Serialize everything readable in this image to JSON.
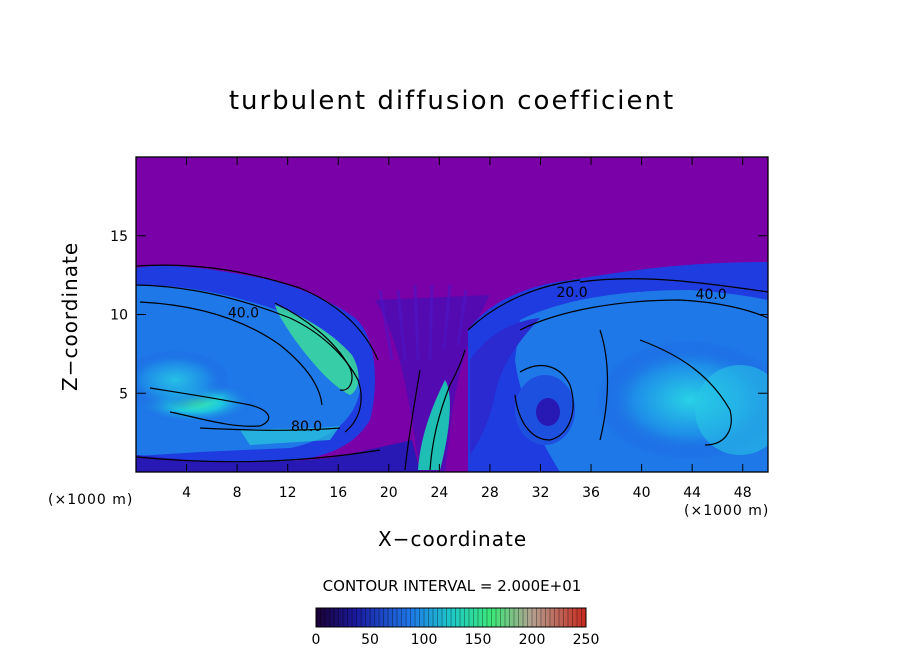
{
  "chart_data": {
    "type": "heatmap",
    "title": "turbulent diffusion coefficient",
    "xlabel": "X−coordinate",
    "ylabel": "Z−coordinate",
    "x_unit_label": "(×1000 m)",
    "y_unit_label": "(×1000 m)",
    "xlim": [
      0,
      50
    ],
    "ylim": [
      0,
      20
    ],
    "x_ticks": [
      4,
      8,
      12,
      16,
      20,
      24,
      28,
      32,
      36,
      40,
      44,
      48
    ],
    "y_ticks": [
      5,
      10,
      15
    ],
    "contour_interval_text": "CONTOUR INTERVAL = 2.000E+01",
    "contour_labels": [
      {
        "text": "40.0",
        "x": 8.5,
        "y": 9.8
      },
      {
        "text": "80.0",
        "x": 13.5,
        "y": 2.6
      },
      {
        "text": "40.0",
        "x": 45.5,
        "y": 11.0
      },
      {
        "text": "20.0",
        "x": 34.5,
        "y": 11.1
      }
    ],
    "colorbar": {
      "min": 0,
      "max": 250,
      "tick_labels": [
        "0",
        "50",
        "100",
        "150",
        "200",
        "250"
      ]
    },
    "colors": {
      "background_field": "#7a00a8",
      "low": "#1e1ed8",
      "mid": "#17b4e6",
      "high": "#3cf0a0"
    },
    "grid": false
  }
}
